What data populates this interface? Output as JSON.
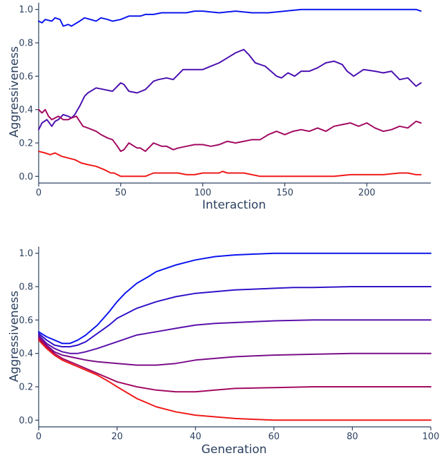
{
  "colors": {
    "axis": "#2a3f5f",
    "series_palette": [
      "#0a14ee",
      "#4a0eb0",
      "#6a0c98",
      "#8a0a78",
      "#a20860",
      "#f01818"
    ]
  },
  "chart_data": [
    {
      "type": "line",
      "title": "",
      "xlabel": "Interaction",
      "ylabel": "Aggressiveness",
      "xlim": [
        0,
        239
      ],
      "ylim": [
        -0.04,
        1.04
      ],
      "xticks": [
        0,
        50,
        100,
        150,
        200
      ],
      "yticks": [
        0.0,
        0.2,
        0.4,
        0.6,
        0.8,
        1.0
      ],
      "ytick_labels": [
        "0.0",
        "0.2",
        "0.4",
        "0.6",
        "0.8",
        "1.0"
      ],
      "grid": false,
      "series": [
        {
          "color": "#0a14ee",
          "x": [
            0,
            2,
            4,
            8,
            10,
            13,
            15,
            18,
            20,
            25,
            28,
            35,
            38,
            42,
            45,
            50,
            55,
            62,
            65,
            70,
            75,
            80,
            85,
            90,
            95,
            100,
            110,
            120,
            130,
            140,
            150,
            160,
            170,
            180,
            190,
            200,
            210,
            220,
            230,
            233
          ],
          "y": [
            0.93,
            0.92,
            0.94,
            0.93,
            0.95,
            0.94,
            0.9,
            0.91,
            0.9,
            0.93,
            0.95,
            0.93,
            0.95,
            0.94,
            0.93,
            0.94,
            0.96,
            0.96,
            0.97,
            0.97,
            0.98,
            0.98,
            0.98,
            0.98,
            0.99,
            0.99,
            0.98,
            0.99,
            0.98,
            0.98,
            0.99,
            1.0,
            1.0,
            1.0,
            1.0,
            1.0,
            1.0,
            1.0,
            1.0,
            0.99
          ]
        },
        {
          "color": "#4a0eb0",
          "x": [
            0,
            2,
            5,
            8,
            10,
            12,
            15,
            18,
            20,
            22,
            25,
            28,
            30,
            35,
            40,
            45,
            50,
            52,
            55,
            60,
            65,
            70,
            73,
            78,
            82,
            88,
            92,
            100,
            105,
            110,
            115,
            120,
            125,
            128,
            132,
            138,
            145,
            148,
            152,
            156,
            160,
            165,
            170,
            175,
            180,
            185,
            188,
            192,
            198,
            205,
            210,
            215,
            220,
            225,
            230,
            233
          ],
          "y": [
            0.28,
            0.32,
            0.34,
            0.3,
            0.33,
            0.34,
            0.37,
            0.36,
            0.35,
            0.37,
            0.42,
            0.48,
            0.5,
            0.53,
            0.52,
            0.51,
            0.56,
            0.55,
            0.51,
            0.5,
            0.52,
            0.57,
            0.58,
            0.59,
            0.58,
            0.64,
            0.64,
            0.64,
            0.66,
            0.68,
            0.71,
            0.74,
            0.76,
            0.73,
            0.68,
            0.66,
            0.6,
            0.59,
            0.62,
            0.6,
            0.63,
            0.63,
            0.65,
            0.68,
            0.69,
            0.67,
            0.63,
            0.6,
            0.64,
            0.63,
            0.62,
            0.63,
            0.58,
            0.59,
            0.54,
            0.56
          ]
        },
        {
          "color": "#a20860",
          "x": [
            0,
            2,
            4,
            6,
            8,
            10,
            12,
            15,
            18,
            20,
            23,
            25,
            27,
            30,
            35,
            38,
            42,
            45,
            48,
            50,
            52,
            55,
            60,
            62,
            65,
            70,
            75,
            78,
            82,
            85,
            90,
            95,
            100,
            105,
            110,
            115,
            120,
            125,
            130,
            135,
            140,
            145,
            150,
            155,
            160,
            165,
            170,
            175,
            180,
            185,
            190,
            195,
            200,
            205,
            210,
            215,
            220,
            225,
            230,
            233
          ],
          "y": [
            0.4,
            0.38,
            0.4,
            0.36,
            0.34,
            0.35,
            0.36,
            0.34,
            0.34,
            0.35,
            0.36,
            0.33,
            0.3,
            0.29,
            0.27,
            0.25,
            0.23,
            0.22,
            0.18,
            0.15,
            0.16,
            0.2,
            0.17,
            0.17,
            0.15,
            0.2,
            0.18,
            0.18,
            0.16,
            0.17,
            0.18,
            0.19,
            0.19,
            0.18,
            0.19,
            0.21,
            0.2,
            0.21,
            0.22,
            0.22,
            0.25,
            0.27,
            0.25,
            0.27,
            0.28,
            0.27,
            0.29,
            0.27,
            0.3,
            0.31,
            0.32,
            0.3,
            0.32,
            0.29,
            0.27,
            0.28,
            0.3,
            0.29,
            0.33,
            0.32
          ]
        },
        {
          "color": "#f01818",
          "x": [
            0,
            4,
            7,
            10,
            14,
            18,
            22,
            26,
            30,
            35,
            40,
            44,
            46,
            48,
            50,
            55,
            60,
            65,
            70,
            75,
            80,
            85,
            90,
            95,
            100,
            110,
            112,
            115,
            120,
            125,
            130,
            135,
            140,
            150,
            160,
            170,
            180,
            190,
            200,
            210,
            220,
            225,
            230,
            233
          ],
          "y": [
            0.15,
            0.14,
            0.13,
            0.14,
            0.12,
            0.11,
            0.1,
            0.08,
            0.07,
            0.06,
            0.04,
            0.02,
            0.02,
            0.01,
            0.0,
            0.0,
            0.0,
            0.0,
            0.02,
            0.02,
            0.02,
            0.02,
            0.01,
            0.01,
            0.02,
            0.02,
            0.03,
            0.02,
            0.02,
            0.02,
            0.01,
            0.0,
            0.0,
            0.0,
            0.0,
            0.0,
            0.0,
            0.01,
            0.01,
            0.01,
            0.02,
            0.02,
            0.01,
            0.01
          ]
        }
      ]
    },
    {
      "type": "line",
      "title": "",
      "xlabel": "Generation",
      "ylabel": "Aggressiveness",
      "xlim": [
        0,
        100
      ],
      "ylim": [
        -0.04,
        1.04
      ],
      "xticks": [
        0,
        20,
        40,
        60,
        80,
        100
      ],
      "yticks": [
        0.0,
        0.2,
        0.4,
        0.6,
        0.8,
        1.0
      ],
      "ytick_labels": [
        "0.0",
        "0.2",
        "0.4",
        "0.6",
        "0.8",
        "1.0"
      ],
      "grid": false,
      "series": [
        {
          "color": "#0a14ee",
          "x": [
            0,
            2,
            4,
            6,
            8,
            10,
            12,
            15,
            18,
            20,
            22,
            25,
            28,
            30,
            35,
            40,
            45,
            50,
            55,
            60,
            65,
            70,
            80,
            90,
            100
          ],
          "y": [
            0.53,
            0.5,
            0.48,
            0.46,
            0.46,
            0.48,
            0.51,
            0.57,
            0.65,
            0.71,
            0.76,
            0.82,
            0.86,
            0.89,
            0.93,
            0.96,
            0.98,
            0.99,
            0.995,
            1.0,
            1.0,
            1.0,
            1.0,
            1.0,
            1.0
          ]
        },
        {
          "color": "#3010c8",
          "x": [
            0,
            2,
            4,
            6,
            8,
            10,
            12,
            15,
            18,
            20,
            25,
            30,
            35,
            40,
            45,
            50,
            55,
            60,
            65,
            70,
            80,
            90,
            100
          ],
          "y": [
            0.52,
            0.48,
            0.45,
            0.44,
            0.44,
            0.45,
            0.47,
            0.52,
            0.57,
            0.61,
            0.67,
            0.71,
            0.74,
            0.76,
            0.77,
            0.78,
            0.785,
            0.79,
            0.795,
            0.795,
            0.8,
            0.8,
            0.8
          ]
        },
        {
          "color": "#5a0eaa",
          "x": [
            0,
            2,
            4,
            6,
            8,
            10,
            12,
            15,
            20,
            25,
            30,
            35,
            40,
            45,
            50,
            55,
            60,
            70,
            80,
            90,
            100
          ],
          "y": [
            0.51,
            0.46,
            0.43,
            0.41,
            0.4,
            0.4,
            0.41,
            0.43,
            0.47,
            0.51,
            0.53,
            0.55,
            0.57,
            0.58,
            0.585,
            0.59,
            0.595,
            0.6,
            0.6,
            0.6,
            0.6
          ]
        },
        {
          "color": "#7a0c88",
          "x": [
            0,
            2,
            4,
            6,
            8,
            10,
            12,
            15,
            20,
            25,
            30,
            35,
            40,
            45,
            50,
            55,
            60,
            70,
            80,
            90,
            100
          ],
          "y": [
            0.5,
            0.45,
            0.41,
            0.39,
            0.38,
            0.37,
            0.36,
            0.35,
            0.34,
            0.33,
            0.33,
            0.34,
            0.36,
            0.37,
            0.38,
            0.385,
            0.39,
            0.395,
            0.4,
            0.4,
            0.4
          ]
        },
        {
          "color": "#a20860",
          "x": [
            0,
            2,
            4,
            6,
            8,
            10,
            12,
            15,
            20,
            25,
            30,
            35,
            40,
            45,
            50,
            60,
            70,
            80,
            90,
            100
          ],
          "y": [
            0.49,
            0.44,
            0.4,
            0.37,
            0.35,
            0.33,
            0.31,
            0.28,
            0.23,
            0.2,
            0.18,
            0.17,
            0.17,
            0.18,
            0.19,
            0.195,
            0.2,
            0.2,
            0.2,
            0.2
          ]
        },
        {
          "color": "#f01818",
          "x": [
            0,
            2,
            4,
            6,
            8,
            10,
            12,
            15,
            18,
            20,
            25,
            30,
            35,
            40,
            45,
            50,
            55,
            60,
            70,
            80,
            90,
            100
          ],
          "y": [
            0.48,
            0.43,
            0.39,
            0.36,
            0.34,
            0.32,
            0.3,
            0.27,
            0.23,
            0.2,
            0.13,
            0.08,
            0.05,
            0.03,
            0.02,
            0.01,
            0.005,
            0.0,
            0.0,
            0.0,
            0.0,
            0.0
          ]
        }
      ]
    }
  ]
}
